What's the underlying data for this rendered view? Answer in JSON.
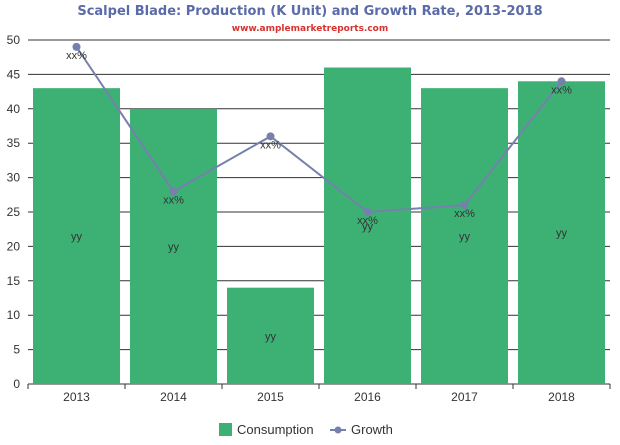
{
  "chart_data": {
    "type": "bar",
    "title": "Scalpel Blade: Production (K Unit) and Growth Rate, 2013-2018",
    "subtitle": "www.amplemarketreports.com",
    "categories": [
      "2013",
      "2014",
      "2015",
      "2016",
      "2017",
      "2018"
    ],
    "series": [
      {
        "name": "Consumption",
        "type": "bar",
        "values": [
          43,
          40,
          14,
          46,
          43,
          44
        ],
        "labels": [
          "yy",
          "yy",
          "yy",
          "yy",
          "yy",
          "yy"
        ]
      },
      {
        "name": "Growth",
        "type": "line",
        "values": [
          49,
          28,
          36,
          25,
          26,
          44
        ],
        "labels": [
          "xx%",
          "xx%",
          "xx%",
          "xx%",
          "xx%",
          "xx%"
        ]
      }
    ],
    "ylim": [
      0,
      50
    ],
    "yticks": [
      0,
      5,
      10,
      15,
      20,
      25,
      30,
      35,
      40,
      45,
      50
    ],
    "grid": true,
    "legend_position": "bottom-center",
    "colors": {
      "title": "#5b6aa8",
      "subtitle": "#d6322e",
      "bar": "#3db174",
      "line": "#7580ad",
      "grid": "#333333",
      "axis": "#333333"
    }
  }
}
